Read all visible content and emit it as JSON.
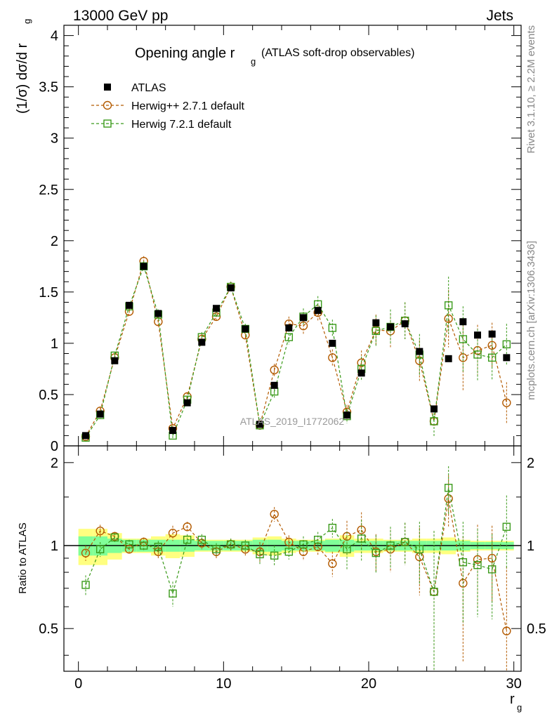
{
  "header": {
    "energy": "13000 GeV pp",
    "category": "Jets"
  },
  "side_labels": {
    "rivet": "Rivet 3.1.10, ≥ 2.2M events",
    "mcplots": "mcplots.cern.ch [arXiv:1306.3436]"
  },
  "watermark": "ATLAS_2019_I1772062",
  "chart_data": [
    {
      "type": "scatter",
      "title_main": "Opening angle r",
      "title_sub": "g",
      "title_suffix": "(ATLAS soft-drop observables)",
      "ylabel": "(1/σ) dσ/d r",
      "ylabel_sub": "g",
      "xlim": [
        -1,
        30.5
      ],
      "ylim": [
        0,
        4.1
      ],
      "yticks": [
        "0",
        "0.5",
        "1",
        "1.5",
        "2",
        "2.5",
        "3",
        "3.5",
        "4"
      ],
      "x": [
        0.5,
        1.5,
        2.5,
        3.5,
        4.5,
        5.5,
        6.5,
        7.5,
        8.5,
        9.5,
        10.5,
        11.5,
        12.5,
        13.5,
        14.5,
        15.5,
        16.5,
        17.5,
        18.5,
        19.5,
        20.5,
        21.5,
        22.5,
        23.5,
        24.5,
        25.5,
        26.5,
        27.5,
        28.5,
        29.5
      ],
      "series": [
        {
          "name": "ATLAS",
          "color": "#000000",
          "marker": "filled-square",
          "values": [
            0.1,
            0.31,
            0.83,
            1.37,
            1.75,
            1.29,
            0.15,
            0.42,
            1.01,
            1.34,
            1.54,
            1.14,
            0.21,
            0.59,
            1.15,
            1.25,
            1.32,
            1.0,
            0.3,
            0.71,
            1.2,
            1.16,
            1.19,
            0.92,
            0.36,
            0.85,
            1.21,
            1.08,
            1.09,
            0.86
          ]
        },
        {
          "name": "Herwig++ 2.7.1 default",
          "color": "#b35a00",
          "marker": "open-circle",
          "values": [
            0.09,
            0.34,
            0.86,
            1.31,
            1.8,
            1.21,
            0.17,
            0.48,
            1.04,
            1.26,
            1.55,
            1.08,
            0.2,
            0.74,
            1.19,
            1.17,
            1.3,
            0.86,
            0.33,
            0.81,
            1.13,
            1.12,
            1.22,
            0.83,
            0.24,
            1.24,
            0.86,
            0.93,
            0.98,
            0.42
          ]
        },
        {
          "name": "Herwig 7.2.1 default",
          "color": "#3a9a1a",
          "marker": "open-square",
          "values": [
            0.08,
            0.3,
            0.88,
            1.36,
            1.75,
            1.28,
            0.1,
            0.45,
            1.06,
            1.3,
            1.55,
            1.14,
            0.2,
            0.53,
            1.06,
            1.26,
            1.38,
            1.15,
            0.29,
            0.75,
            1.12,
            1.16,
            1.22,
            0.89,
            0.24,
            1.37,
            1.04,
            0.89,
            0.86,
            0.99
          ]
        }
      ],
      "series_errors": [
        0.04,
        0.04,
        0.03,
        0.04,
        0.05,
        0.05,
        0.03,
        0.04,
        0.05,
        0.05,
        0.05,
        0.05,
        0.04,
        0.06,
        0.07,
        0.08,
        0.08,
        0.08,
        0.07,
        0.12,
        0.15,
        0.17,
        0.18,
        0.2,
        0.15,
        0.28,
        0.32,
        0.25,
        0.22,
        0.2
      ]
    },
    {
      "type": "scatter",
      "ylabel": "Ratio to ATLAS",
      "xlabel": "r",
      "xlabel_sub": "g",
      "xlim": [
        -1,
        30.5
      ],
      "ylim_log": [
        0.35,
        2.3
      ],
      "yticks": [
        "0.5",
        "1",
        "2"
      ],
      "xticks": [
        "0",
        "10",
        "20",
        "30"
      ],
      "band_inner": [
        0.08,
        0.08,
        0.06,
        0.05,
        0.05,
        0.05,
        0.05,
        0.05,
        0.04,
        0.04,
        0.04,
        0.04,
        0.05,
        0.05,
        0.04,
        0.04,
        0.04,
        0.05,
        0.05,
        0.04,
        0.04,
        0.04,
        0.04,
        0.04,
        0.04,
        0.04,
        0.04,
        0.03,
        0.03,
        0.03
      ],
      "band_outer": [
        0.15,
        0.15,
        0.11,
        0.06,
        0.06,
        0.08,
        0.1,
        0.09,
        0.05,
        0.05,
        0.05,
        0.05,
        0.07,
        0.08,
        0.06,
        0.05,
        0.05,
        0.06,
        0.09,
        0.06,
        0.06,
        0.05,
        0.05,
        0.06,
        0.06,
        0.07,
        0.05,
        0.04,
        0.04,
        0.04
      ],
      "series": [
        {
          "name": "Herwig++ 2.7.1 default",
          "values": [
            0.94,
            1.13,
            1.08,
            0.97,
            1.03,
            0.95,
            1.11,
            1.17,
            1.02,
            0.95,
            1.01,
            0.97,
            0.95,
            1.3,
            1.03,
            0.95,
            0.99,
            0.86,
            1.08,
            1.14,
            0.95,
            0.97,
            1.03,
            0.91,
            0.68,
            1.48,
            0.73,
            0.89,
            0.9,
            0.49
          ]
        },
        {
          "name": "Herwig 7.2.1 default",
          "values": [
            0.72,
            0.97,
            1.07,
            1.01,
            1.0,
            0.99,
            0.67,
            1.05,
            1.05,
            0.97,
            1.01,
            1.0,
            0.93,
            0.92,
            0.95,
            1.01,
            1.05,
            1.16,
            0.97,
            1.06,
            0.94,
            1.0,
            1.03,
            0.97,
            0.68,
            1.62,
            0.87,
            0.85,
            0.82,
            1.17
          ]
        }
      ],
      "ratio_errors": [
        0.06,
        0.06,
        0.04,
        0.04,
        0.04,
        0.05,
        0.07,
        0.05,
        0.05,
        0.05,
        0.05,
        0.05,
        0.08,
        0.08,
        0.06,
        0.07,
        0.07,
        0.09,
        0.15,
        0.18,
        0.15,
        0.17,
        0.18,
        0.25,
        0.45,
        0.32,
        0.35,
        0.3,
        0.28,
        0.35
      ]
    }
  ]
}
